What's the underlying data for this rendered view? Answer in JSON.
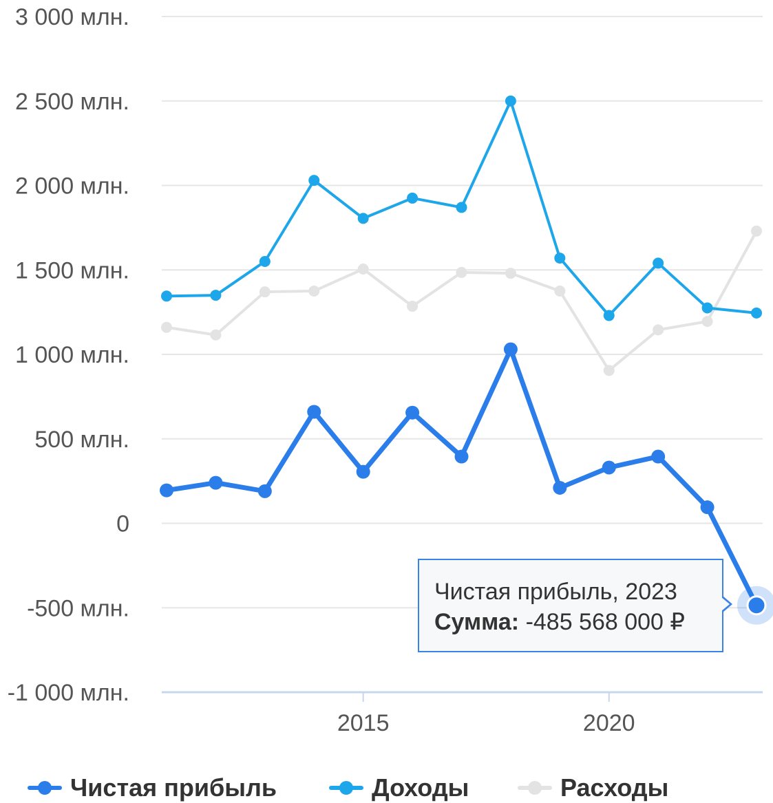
{
  "chart_data": {
    "type": "line",
    "x": [
      2011,
      2012,
      2013,
      2014,
      2015,
      2016,
      2017,
      2018,
      2019,
      2020,
      2021,
      2022,
      2023
    ],
    "series": [
      {
        "name": "Чистая прибыль",
        "color": "#2b7de9",
        "values": [
          195,
          240,
          190,
          660,
          305,
          655,
          395,
          1030,
          210,
          330,
          395,
          95,
          -485.568
        ]
      },
      {
        "name": "Доходы",
        "color": "#1ea6ea",
        "values": [
          1345,
          1350,
          1550,
          2030,
          1805,
          1925,
          1870,
          2500,
          1570,
          1230,
          1540,
          1275,
          1245
        ]
      },
      {
        "name": "Расходы",
        "color": "#e3e3e3",
        "values": [
          1160,
          1115,
          1370,
          1375,
          1505,
          1285,
          1485,
          1480,
          1375,
          905,
          1145,
          1195,
          1730
        ]
      }
    ],
    "ylim": [
      -1000,
      3000
    ],
    "y_ticks": [
      -1000,
      -500,
      0,
      500,
      1000,
      1500,
      2000,
      2500,
      3000
    ],
    "y_tick_labels": [
      "-1 000 млн.",
      "-500 млн.",
      "0",
      "500 млн.",
      "1 000 млн.",
      "1 500 млн.",
      "2 000 млн.",
      "2 500 млн.",
      "3 000 млн."
    ],
    "x_ticks": [
      2015,
      2020
    ],
    "x_tick_labels": [
      "2015",
      "2020"
    ],
    "grid": true,
    "legend_position": "bottom",
    "highlighted_point": {
      "series": 0,
      "index": 12
    }
  },
  "tooltip": {
    "title": "Чистая прибыль, 2023",
    "label": "Сумма:",
    "value": "-485 568 000 ₽"
  }
}
